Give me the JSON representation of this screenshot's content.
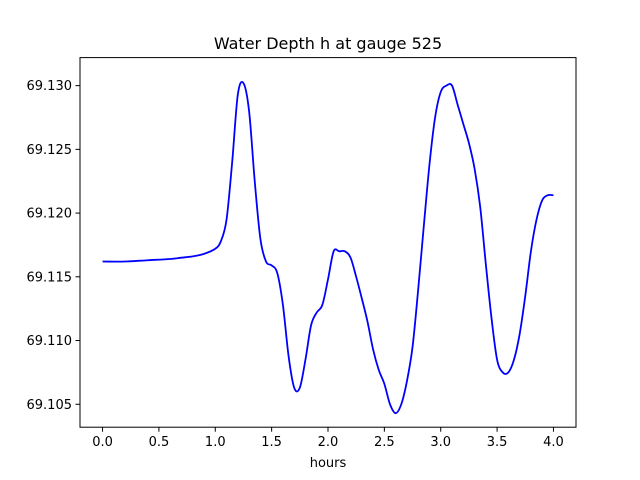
{
  "chart_data": {
    "type": "line",
    "title": "Water Depth h at gauge 525",
    "xlabel": "hours",
    "ylabel": "",
    "xlim": [
      -0.2,
      4.2
    ],
    "ylim": [
      69.1032,
      69.1322
    ],
    "xticks": [
      0.0,
      0.5,
      1.0,
      1.5,
      2.0,
      2.5,
      3.0,
      3.5,
      4.0
    ],
    "xtick_labels": [
      "0.0",
      "0.5",
      "1.0",
      "1.5",
      "2.0",
      "2.5",
      "3.0",
      "3.5",
      "4.0"
    ],
    "yticks": [
      69.105,
      69.11,
      69.115,
      69.12,
      69.125,
      69.13
    ],
    "ytick_labels": [
      "69.105",
      "69.110",
      "69.115",
      "69.120",
      "69.125",
      "69.130"
    ],
    "grid": false,
    "line_color": "#0000ff",
    "series": [
      {
        "x": [
          0.0,
          0.2,
          0.4,
          0.6,
          0.7,
          0.8,
          0.9,
          1.0,
          1.05,
          1.1,
          1.15,
          1.2,
          1.25,
          1.3,
          1.35,
          1.4,
          1.45,
          1.5,
          1.55,
          1.6,
          1.65,
          1.7,
          1.75,
          1.8,
          1.85,
          1.9,
          1.95,
          2.0,
          2.05,
          2.1,
          2.15,
          2.2,
          2.25,
          2.3,
          2.35,
          2.4,
          2.45,
          2.5,
          2.55,
          2.6,
          2.65,
          2.7,
          2.75,
          2.8,
          2.85,
          2.9,
          2.95,
          3.0,
          3.05,
          3.1,
          3.15,
          3.2,
          3.25,
          3.3,
          3.35,
          3.4,
          3.45,
          3.5,
          3.55,
          3.6,
          3.65,
          3.7,
          3.75,
          3.8,
          3.85,
          3.9,
          3.95,
          4.0
        ],
        "y": [
          69.1162,
          69.1162,
          69.1163,
          69.1164,
          69.1165,
          69.1166,
          69.1168,
          69.1172,
          69.1178,
          69.1195,
          69.124,
          69.1293,
          69.1302,
          69.128,
          69.1225,
          69.118,
          69.1162,
          69.1159,
          69.1153,
          69.1128,
          69.1088,
          69.1063,
          69.1063,
          69.1085,
          69.1112,
          69.1122,
          69.1128,
          69.1148,
          69.117,
          69.117,
          69.117,
          69.1165,
          69.115,
          69.1133,
          69.1115,
          69.1093,
          69.1077,
          69.1066,
          69.105,
          69.1043,
          69.105,
          69.1068,
          69.1095,
          69.114,
          69.119,
          69.1238,
          69.1275,
          69.1295,
          69.13,
          69.13,
          69.1285,
          69.127,
          69.1255,
          69.1235,
          69.1205,
          69.116,
          69.1118,
          69.1085,
          69.1075,
          69.1075,
          69.1085,
          69.1105,
          69.1135,
          69.117,
          69.1195,
          69.121,
          69.1214,
          69.1214
        ]
      }
    ]
  }
}
